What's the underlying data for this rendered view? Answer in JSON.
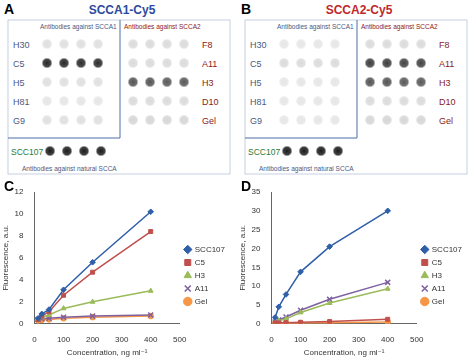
{
  "panels": [
    {
      "label": "A",
      "title": "SCCA1-Cy5",
      "color": "#2e4a9e",
      "left_header": "Antibodies against SCCA1",
      "right_header": "Antibodies against SCCA2",
      "bottom_header": "Antibodies against natural SCCA",
      "left_rows": [
        {
          "label": "H30",
          "intensity": [
            0.08,
            0.08,
            0.08,
            0.08
          ]
        },
        {
          "label": "C5",
          "intensity": [
            0.9,
            0.9,
            0.88,
            0.88
          ]
        },
        {
          "label": "H5",
          "intensity": [
            0.08,
            0.08,
            0.08,
            0.08
          ]
        },
        {
          "label": "H81",
          "intensity": [
            0.05,
            0.05,
            0.05,
            0.05
          ]
        },
        {
          "label": "G9",
          "intensity": [
            0.08,
            0.08,
            0.08,
            0.08
          ]
        }
      ],
      "natural_row": {
        "label": "SCC107",
        "intensity": [
          0.95,
          0.95,
          0.95,
          0.95
        ]
      },
      "right_rows": [
        {
          "label": "F8",
          "intensity": [
            0.1,
            0.1,
            0.1,
            0.1
          ]
        },
        {
          "label": "A11",
          "intensity": [
            0.1,
            0.1,
            0.1,
            0.1
          ]
        },
        {
          "label": "H3",
          "intensity": [
            0.7,
            0.7,
            0.68,
            0.68
          ]
        },
        {
          "label": "D10",
          "intensity": [
            0.1,
            0.1,
            0.1,
            0.1
          ]
        },
        {
          "label": "Gel",
          "intensity": [
            0.12,
            0.12,
            0.12,
            0.12
          ]
        }
      ]
    },
    {
      "label": "B",
      "title": "SCCA2-Cy5",
      "color": "#c0282d",
      "left_header": "Antibodies against SCCA1",
      "right_header": "Antibodies against SCCA2",
      "bottom_header": "Antibodies against natural SCCA",
      "left_rows": [
        {
          "label": "H30",
          "intensity": [
            0.05,
            0.05,
            0.05,
            0.05
          ]
        },
        {
          "label": "C5",
          "intensity": [
            0.1,
            0.1,
            0.1,
            0.1
          ]
        },
        {
          "label": "H5",
          "intensity": [
            0.05,
            0.05,
            0.05,
            0.05
          ]
        },
        {
          "label": "H81",
          "intensity": [
            0.05,
            0.05,
            0.05,
            0.05
          ]
        },
        {
          "label": "G9",
          "intensity": [
            0.05,
            0.05,
            0.05,
            0.05
          ]
        }
      ],
      "natural_row": {
        "label": "SCC107",
        "intensity": [
          0.95,
          0.95,
          0.95,
          0.95
        ]
      },
      "right_rows": [
        {
          "label": "F8",
          "intensity": [
            0.1,
            0.1,
            0.1,
            0.1
          ]
        },
        {
          "label": "A11",
          "intensity": [
            0.8,
            0.8,
            0.78,
            0.78
          ]
        },
        {
          "label": "H3",
          "intensity": [
            0.7,
            0.7,
            0.68,
            0.68
          ]
        },
        {
          "label": "D10",
          "intensity": [
            0.1,
            0.1,
            0.1,
            0.1
          ]
        },
        {
          "label": "Gel",
          "intensity": [
            0.12,
            0.12,
            0.12,
            0.12
          ]
        }
      ]
    }
  ],
  "chart_data": [
    {
      "type": "line",
      "title": "C",
      "x_label": "Concentration, ng ml⁻¹",
      "y_label": "Fluorescence, a.u.",
      "x": [
        12.5,
        25,
        50,
        100,
        200,
        400
      ],
      "xlim": [
        0,
        500
      ],
      "xticks": [
        0,
        100,
        200,
        300,
        400,
        500
      ],
      "ylim": [
        0,
        12
      ],
      "yticks": [
        0,
        2,
        4,
        6,
        8,
        10,
        12
      ],
      "grid": false,
      "legend": "right",
      "series": [
        {
          "name": "SCC107",
          "color": "#2e5fa8",
          "marker": "diamond",
          "values": [
            0.5,
            0.9,
            1.3,
            3.1,
            5.6,
            10.2
          ]
        },
        {
          "name": "C5",
          "color": "#c0504d",
          "marker": "square",
          "values": [
            0.4,
            0.7,
            1.1,
            2.6,
            4.7,
            8.4
          ]
        },
        {
          "name": "H3",
          "color": "#9bbb59",
          "marker": "triangle",
          "values": [
            0.4,
            0.6,
            0.8,
            1.4,
            2.0,
            3.0
          ]
        },
        {
          "name": "A11",
          "color": "#7f60a0",
          "marker": "x",
          "values": [
            0.4,
            0.45,
            0.5,
            0.6,
            0.7,
            0.8
          ]
        },
        {
          "name": "Gel",
          "color": "#f79646",
          "marker": "circle",
          "values": [
            0.3,
            0.35,
            0.4,
            0.5,
            0.6,
            0.7
          ]
        }
      ]
    },
    {
      "type": "line",
      "title": "D",
      "x_label": "Concentration, ng ml⁻¹",
      "y_label": "Fluorescence, a.u.",
      "x": [
        12.5,
        25,
        50,
        100,
        200,
        400
      ],
      "xlim": [
        0,
        500
      ],
      "xticks": [
        0,
        100,
        200,
        300,
        400,
        500
      ],
      "ylim": [
        0,
        35
      ],
      "yticks": [
        0,
        5,
        10,
        15,
        20,
        25,
        30,
        35
      ],
      "grid": false,
      "legend": "right",
      "series": [
        {
          "name": "SCC107",
          "color": "#2e5fa8",
          "marker": "diamond",
          "values": [
            1.7,
            4.5,
            7.8,
            13.8,
            20.5,
            30.0
          ]
        },
        {
          "name": "C5",
          "color": "#c0504d",
          "marker": "square",
          "values": [
            0.2,
            0.25,
            0.3,
            0.4,
            0.6,
            1.2
          ]
        },
        {
          "name": "H3",
          "color": "#9bbb59",
          "marker": "triangle",
          "values": [
            0.3,
            0.8,
            1.3,
            3.0,
            5.5,
            9.3
          ]
        },
        {
          "name": "A11",
          "color": "#7f60a0",
          "marker": "x",
          "values": [
            0.5,
            1.0,
            1.8,
            3.6,
            6.5,
            11.0
          ]
        },
        {
          "name": "Gel",
          "color": "#f79646",
          "marker": "circle",
          "values": [
            0.1,
            0.1,
            0.15,
            0.2,
            0.3,
            0.5
          ]
        }
      ]
    }
  ]
}
